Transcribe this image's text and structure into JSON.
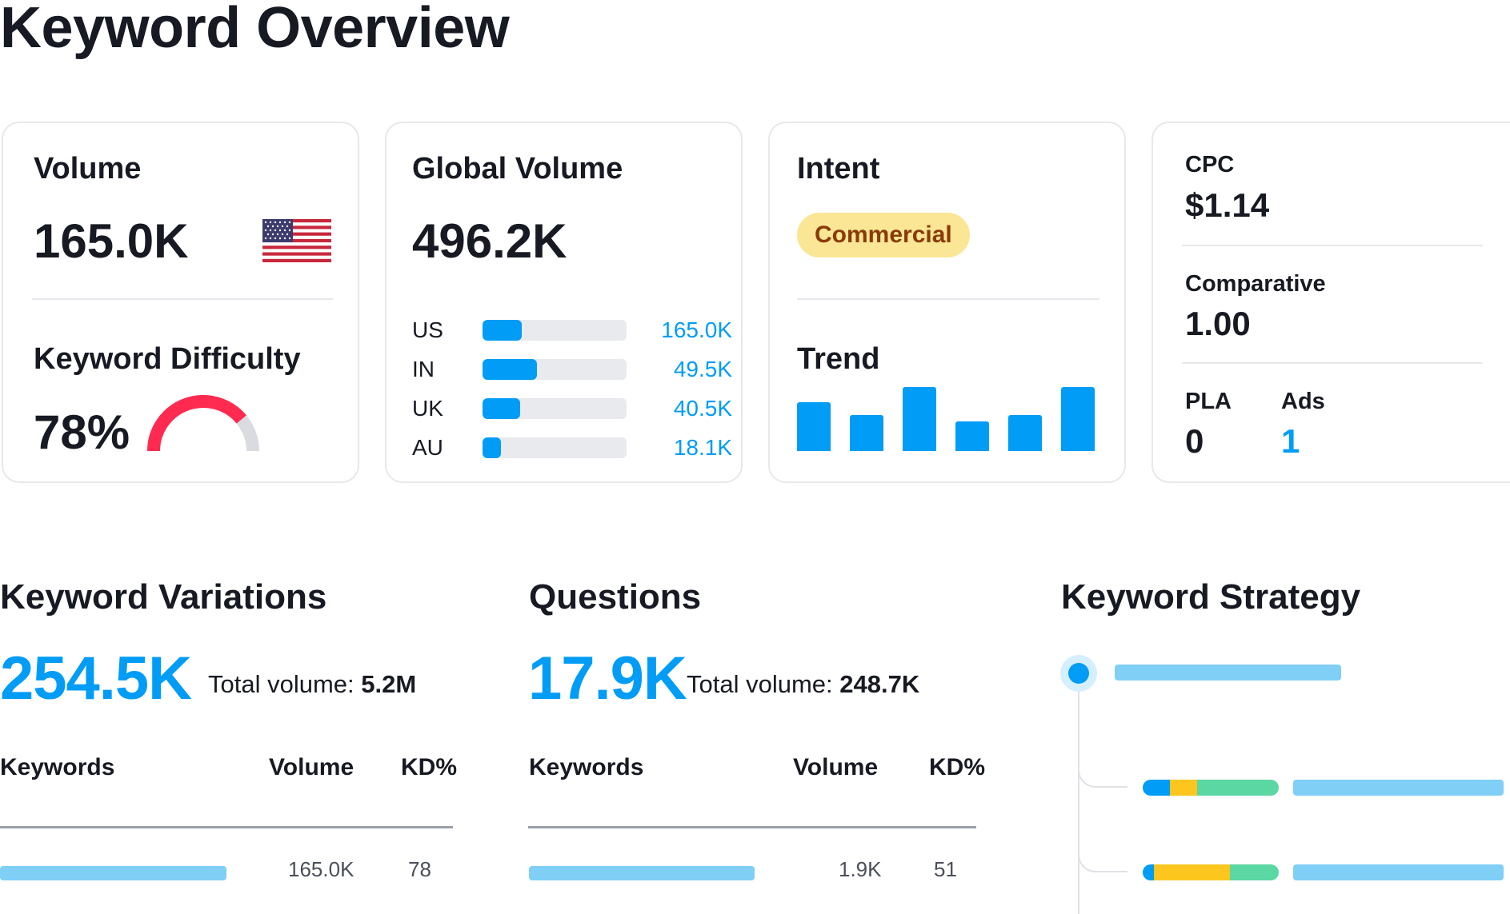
{
  "page": {
    "title": "Keyword Overview"
  },
  "volume_card": {
    "label": "Volume",
    "value": "165.0K",
    "flag": "us-flag-icon",
    "kd_label": "Keyword Difficulty",
    "kd_value": "78%",
    "kd_percent": 78,
    "colors": {
      "gauge_fill": "#ff2a4f",
      "gauge_track": "#d9dbe0"
    }
  },
  "global_card": {
    "label": "Global Volume",
    "value": "496.2K",
    "countries": [
      {
        "code": "US",
        "value": "165.0K",
        "share": 0.27
      },
      {
        "code": "IN",
        "value": "49.5K",
        "share": 0.38
      },
      {
        "code": "UK",
        "value": "40.5K",
        "share": 0.26
      },
      {
        "code": "AU",
        "value": "18.1K",
        "share": 0.13
      }
    ]
  },
  "intent_card": {
    "label": "Intent",
    "badge": "Commercial",
    "trend_label": "Trend",
    "trend_values": [
      0.76,
      0.56,
      1.0,
      0.46,
      0.56,
      1.0
    ]
  },
  "cpc_card": {
    "cpc_label": "CPC",
    "cpc_value": "$1.14",
    "comparative_label": "Comparative",
    "comparative_value": "1.00",
    "pla_label": "PLA",
    "pla_value": "0",
    "ads_label": "Ads",
    "ads_value": "1"
  },
  "variations": {
    "title": "Keyword Variations",
    "count": "254.5K",
    "total_label": "Total volume:",
    "total_value": "5.2M",
    "columns": [
      "Keywords",
      "Volume",
      "KD%"
    ],
    "rows": [
      {
        "volume": "165.0K",
        "kd": "78"
      }
    ]
  },
  "questions": {
    "title": "Questions",
    "count": "17.9K",
    "total_label": "Total volume:",
    "total_value": "248.7K",
    "columns": [
      "Keywords",
      "Volume",
      "KD%"
    ],
    "rows": [
      {
        "volume": "1.9K",
        "kd": "51"
      }
    ]
  },
  "strategy": {
    "title": "Keyword Strategy",
    "segment_colors": [
      "#009cf6",
      "#fcc61e",
      "#5ad7a2"
    ],
    "branches": [
      {
        "segments": [
          0.2,
          0.2,
          0.6
        ]
      },
      {
        "segments": [
          0.08,
          0.56,
          0.36
        ]
      }
    ]
  }
}
